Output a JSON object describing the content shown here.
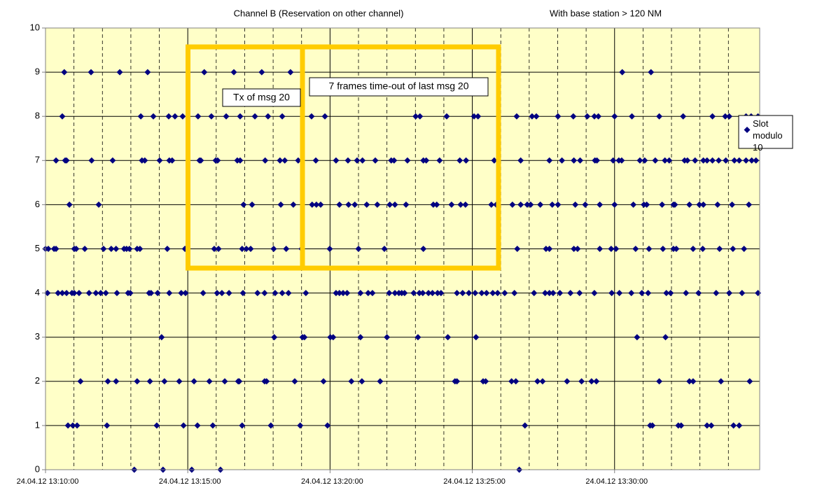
{
  "chart_data": {
    "type": "scatter",
    "title": "Channel B (Reservation on other channel)",
    "subtitle": "With base station > 120 NM",
    "annotations": [
      "Tx of msg 20",
      "7 frames time-out of last msg 20"
    ],
    "background": "#ffffc8",
    "highlight_color": "#ffcc00",
    "grid": true,
    "legend": "right",
    "xlim": [
      0,
      25.1
    ],
    "ylim": [
      0,
      10
    ],
    "yticks": [
      0,
      1,
      2,
      3,
      4,
      5,
      6,
      7,
      8,
      9,
      10
    ],
    "xticks": [
      {
        "value": 0,
        "label": "24.04.12 13:10:00"
      },
      {
        "value": 5,
        "label": "24.04.12 13:15:00"
      },
      {
        "value": 10,
        "label": "24.04.12 13:20:00"
      },
      {
        "value": 15,
        "label": "24.04.12 13:25:00"
      },
      {
        "value": 20,
        "label": "24.04.12 13:30:00"
      }
    ],
    "x_minor_ticks": [
      1,
      2,
      3,
      4,
      6,
      7,
      8,
      9,
      11,
      12,
      13,
      14,
      16,
      17,
      18,
      19,
      21,
      22,
      23,
      24
    ],
    "x": [
      0.66,
      1.6,
      2.61,
      3.59,
      5.58,
      6.62,
      7.6,
      8.61,
      20.27,
      21.28,
      0.59,
      3.35,
      3.79,
      4.33,
      4.55,
      4.82,
      5.36,
      5.83,
      6.35,
      6.84,
      7.36,
      7.82,
      8.32,
      9.35,
      9.82,
      13.01,
      13.16,
      14.1,
      15.06,
      15.2,
      16.56,
      17.1,
      17.25,
      18.01,
      18.55,
      19.04,
      19.29,
      19.43,
      20.0,
      20.61,
      21.57,
      22.41,
      23.44,
      23.89,
      24.03,
      24.62,
      24.8,
      25.04,
      0.37,
      0.69,
      0.74,
      1.62,
      2.36,
      3.39,
      3.49,
      4.01,
      4.35,
      4.45,
      5.41,
      5.46,
      5.98,
      6.05,
      6.74,
      6.84,
      7.72,
      8.24,
      8.41,
      8.88,
      9.5,
      10.21,
      10.63,
      10.95,
      11.14,
      11.59,
      12.15,
      12.25,
      12.72,
      13.28,
      13.38,
      13.85,
      14.56,
      14.78,
      15.77,
      16.7,
      17.71,
      18.15,
      18.57,
      18.79,
      19.31,
      19.38,
      19.95,
      20.15,
      20.25,
      20.89,
      21.06,
      21.43,
      21.77,
      21.92,
      22.46,
      22.56,
      22.83,
      23.12,
      23.25,
      23.44,
      23.66,
      23.91,
      24.21,
      24.38,
      24.62,
      24.82,
      24.97,
      0.84,
      1.87,
      6.96,
      7.26,
      8.27,
      8.71,
      9.37,
      9.52,
      9.67,
      10.33,
      10.65,
      10.87,
      11.29,
      11.66,
      12.1,
      12.28,
      12.67,
      13.63,
      13.75,
      14.27,
      14.59,
      14.76,
      15.67,
      15.84,
      16.41,
      16.7,
      16.93,
      17.05,
      17.39,
      17.81,
      18.01,
      18.62,
      18.97,
      19.48,
      20.0,
      20.66,
      21.03,
      21.13,
      21.67,
      22.07,
      22.12,
      22.63,
      22.98,
      23.12,
      23.62,
      24.13,
      24.72,
      0.0,
      0.1,
      0.3,
      0.37,
      1.01,
      1.08,
      1.38,
      2.04,
      2.31,
      2.48,
      2.76,
      2.85,
      2.95,
      3.22,
      3.32,
      4.28,
      4.9,
      5.93,
      6.08,
      6.91,
      7.06,
      7.21,
      8.02,
      8.46,
      9.0,
      9.99,
      11.0,
      11.91,
      13.28,
      16.58,
      17.59,
      17.71,
      18.57,
      18.7,
      19.48,
      19.88,
      20.05,
      20.74,
      21.21,
      21.7,
      22.07,
      22.17,
      22.76,
      23.1,
      23.69,
      24.16,
      24.55,
      0.07,
      0.44,
      0.59,
      0.74,
      0.93,
      1.01,
      1.18,
      1.53,
      1.77,
      1.94,
      2.12,
      2.51,
      2.9,
      2.98,
      3.64,
      3.71,
      3.94,
      4.35,
      4.77,
      4.92,
      5.54,
      6.03,
      6.2,
      6.45,
      6.94,
      7.45,
      7.7,
      8.07,
      8.32,
      8.54,
      9.15,
      10.21,
      10.33,
      10.46,
      10.6,
      11.07,
      11.34,
      11.49,
      12.08,
      12.28,
      12.42,
      12.52,
      12.62,
      12.94,
      13.14,
      13.26,
      13.46,
      13.6,
      13.78,
      13.9,
      14.46,
      14.66,
      14.88,
      15.1,
      15.33,
      15.5,
      15.72,
      15.89,
      16.14,
      16.48,
      17.17,
      17.56,
      17.71,
      17.84,
      18.08,
      18.45,
      18.77,
      19.29,
      19.9,
      20.17,
      20.59,
      20.96,
      21.18,
      21.82,
      21.97,
      22.51,
      22.95,
      23.57,
      24.03,
      24.48,
      25.04,
      4.08,
      8.04,
      9.03,
      9.1,
      10.01,
      10.11,
      11.07,
      12.0,
      13.09,
      14.14,
      15.13,
      20.79,
      21.79,
      1.23,
      2.19,
      2.48,
      3.22,
      3.67,
      4.18,
      4.7,
      5.22,
      5.76,
      6.3,
      6.77,
      6.81,
      7.7,
      7.77,
      8.76,
      9.77,
      10.75,
      11.12,
      11.76,
      14.39,
      14.46,
      15.38,
      15.47,
      16.38,
      16.53,
      17.29,
      17.47,
      18.33,
      18.84,
      19.19,
      19.36,
      21.57,
      22.63,
      22.76,
      23.74,
      24.75,
      0.79,
      0.96,
      1.11,
      2.16,
      3.91,
      4.85,
      5.34,
      5.88,
      6.91,
      7.92,
      8.95,
      9.91,
      16.85,
      21.25,
      21.33,
      22.24,
      22.34,
      23.25,
      23.4,
      24.18,
      24.38,
      3.12,
      4.13,
      5.14,
      6.15,
      16.65
    ],
    "series": [
      {
        "name": "Slot modulo 10",
        "color": "#000080",
        "marker": "diamond",
        "values": [
          9,
          9,
          9,
          9,
          9,
          9,
          9,
          9,
          9,
          9,
          8,
          8,
          8,
          8,
          8,
          8,
          8,
          8,
          8,
          8,
          8,
          8,
          8,
          8,
          8,
          8,
          8,
          8,
          8,
          8,
          8,
          8,
          8,
          8,
          8,
          8,
          8,
          8,
          8,
          8,
          8,
          8,
          8,
          8,
          8,
          8,
          8,
          8,
          7,
          7,
          7,
          7,
          7,
          7,
          7,
          7,
          7,
          7,
          7,
          7,
          7,
          7,
          7,
          7,
          7,
          7,
          7,
          7,
          7,
          7,
          7,
          7,
          7,
          7,
          7,
          7,
          7,
          7,
          7,
          7,
          7,
          7,
          7,
          7,
          7,
          7,
          7,
          7,
          7,
          7,
          7,
          7,
          7,
          7,
          7,
          7,
          7,
          7,
          7,
          7,
          7,
          7,
          7,
          7,
          7,
          7,
          7,
          7,
          7,
          7,
          7,
          6,
          6,
          6,
          6,
          6,
          6,
          6,
          6,
          6,
          6,
          6,
          6,
          6,
          6,
          6,
          6,
          6,
          6,
          6,
          6,
          6,
          6,
          6,
          6,
          6,
          6,
          6,
          6,
          6,
          6,
          6,
          6,
          6,
          6,
          6,
          6,
          6,
          6,
          6,
          6,
          6,
          6,
          6,
          6,
          6,
          6,
          6,
          5,
          5,
          5,
          5,
          5,
          5,
          5,
          5,
          5,
          5,
          5,
          5,
          5,
          5,
          5,
          5,
          5,
          5,
          5,
          5,
          5,
          5,
          5,
          5,
          5,
          5,
          5,
          5,
          5,
          5,
          5,
          5,
          5,
          5,
          5,
          5,
          5,
          5,
          5,
          5,
          5,
          5,
          5,
          5,
          5,
          5,
          5,
          4,
          4,
          4,
          4,
          4,
          4,
          4,
          4,
          4,
          4,
          4,
          4,
          4,
          4,
          4,
          4,
          4,
          4,
          4,
          4,
          4,
          4,
          4,
          4,
          4,
          4,
          4,
          4,
          4,
          4,
          4,
          4,
          4,
          4,
          4,
          4,
          4,
          4,
          4,
          4,
          4,
          4,
          4,
          4,
          4,
          4,
          4,
          4,
          4,
          4,
          4,
          4,
          4,
          4,
          4,
          4,
          4,
          4,
          4,
          4,
          4,
          4,
          4,
          4,
          4,
          4,
          4,
          4,
          4,
          4,
          4,
          4,
          4,
          4,
          4,
          4,
          4,
          4,
          4,
          4,
          4,
          3,
          3,
          3,
          3,
          3,
          3,
          3,
          3,
          3,
          3,
          3,
          3,
          3,
          2,
          2,
          2,
          2,
          2,
          2,
          2,
          2,
          2,
          2,
          2,
          2,
          2,
          2,
          2,
          2,
          2,
          2,
          2,
          2,
          2,
          2,
          2,
          2,
          2,
          2,
          2,
          2,
          2,
          2,
          2,
          2,
          2,
          2,
          2,
          2,
          1,
          1,
          1,
          1,
          1,
          1,
          1,
          1,
          1,
          1,
          1,
          1,
          1,
          1,
          1,
          1,
          1,
          1,
          1,
          1,
          1,
          0,
          0,
          0,
          0,
          0
        ]
      }
    ]
  }
}
